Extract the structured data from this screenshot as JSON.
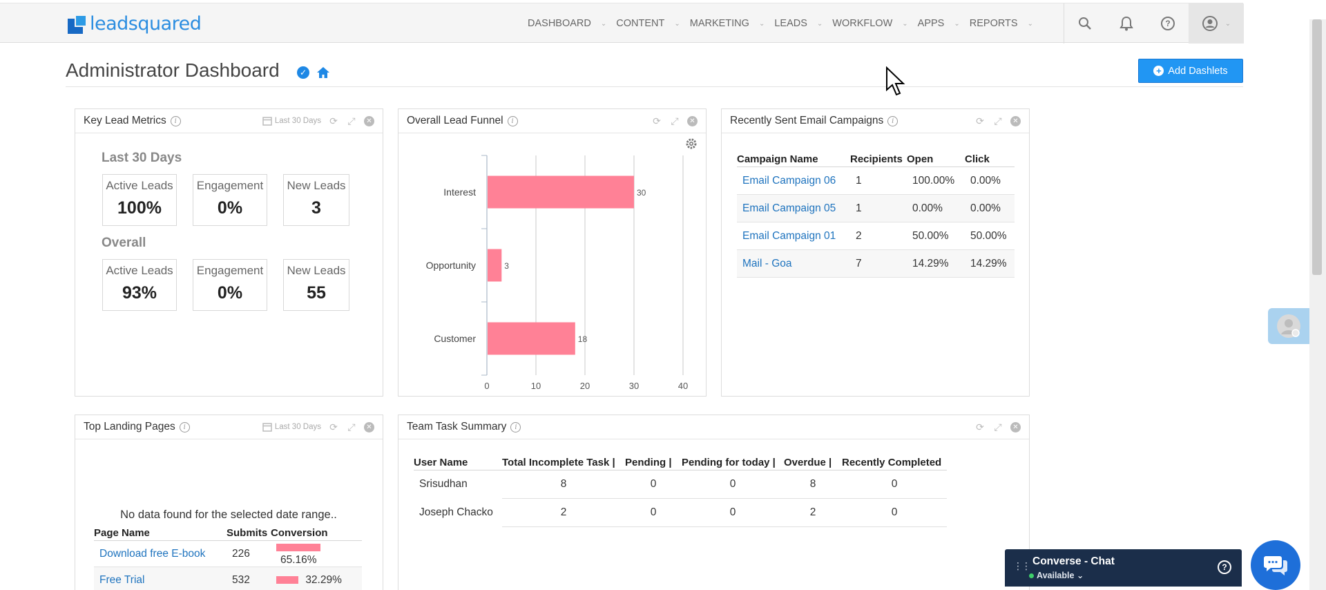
{
  "brand": {
    "logo_text": "leadsquared"
  },
  "nav": {
    "items": [
      {
        "label": "DASHBOARD"
      },
      {
        "label": "CONTENT"
      },
      {
        "label": "MARKETING"
      },
      {
        "label": "LEADS"
      },
      {
        "label": "WORKFLOW"
      },
      {
        "label": "APPS"
      },
      {
        "label": "REPORTS"
      }
    ],
    "help_glyph": "?"
  },
  "page": {
    "title": "Administrator Dashboard",
    "add_dashlets_label": "Add Dashlets"
  },
  "key_lead_metrics": {
    "title": "Key Lead Metrics",
    "range_label": "Last 30 Days",
    "sections": [
      {
        "heading": "Last 30 Days",
        "metrics": [
          {
            "label": "Active Leads",
            "value": "100%"
          },
          {
            "label": "Engagement",
            "value": "0%"
          },
          {
            "label": "New Leads",
            "value": "3"
          }
        ]
      },
      {
        "heading": "Overall",
        "metrics": [
          {
            "label": "Active Leads",
            "value": "93%"
          },
          {
            "label": "Engagement",
            "value": "0%"
          },
          {
            "label": "New Leads",
            "value": "55"
          }
        ]
      }
    ]
  },
  "lead_funnel": {
    "title": "Overall Lead Funnel"
  },
  "chart_data": {
    "type": "bar",
    "orientation": "horizontal",
    "categories": [
      "Interest",
      "Opportunity",
      "Customer"
    ],
    "values": [
      30,
      3,
      18
    ],
    "xlim": [
      0,
      40
    ],
    "xticks": [
      0,
      10,
      20,
      30,
      40
    ],
    "grid": true,
    "bar_color": "#ff8196"
  },
  "email_campaigns": {
    "title": "Recently Sent Email Campaigns",
    "columns": [
      "Campaign Name",
      "Recipients",
      "Open",
      "Click"
    ],
    "rows": [
      {
        "name": "Email Campaign 06",
        "recipients": "1",
        "open": "100.00%",
        "click": "0.00%"
      },
      {
        "name": "Email Campaign 05",
        "recipients": "1",
        "open": "0.00%",
        "click": "0.00%"
      },
      {
        "name": "Email Campaign 01",
        "recipients": "2",
        "open": "50.00%",
        "click": "50.00%"
      },
      {
        "name": "Mail - Goa",
        "recipients": "7",
        "open": "14.29%",
        "click": "14.29%"
      }
    ]
  },
  "landing_pages": {
    "title": "Top Landing Pages",
    "range_label": "Last 30 Days",
    "no_data_text": "No data found for the selected date range..",
    "columns": [
      "Page Name",
      "Submits",
      "Conversion"
    ],
    "rows": [
      {
        "name": "Download free E-book",
        "submits": "226",
        "conversion": "65.16%",
        "pct": 0.6516
      },
      {
        "name": "Free Trial",
        "submits": "532",
        "conversion": "32.29%",
        "pct": 0.3229
      }
    ]
  },
  "team_tasks": {
    "title": "Team Task Summary",
    "columns": [
      "User Name",
      "Total Incomplete Task",
      "Pending",
      "Pending for today",
      "Overdue",
      "Recently Completed"
    ],
    "rows": [
      {
        "user": "Srisudhan",
        "total": "8",
        "pending": "0",
        "today": "0",
        "overdue": "8",
        "completed": "0"
      },
      {
        "user": "Joseph Chacko",
        "total": "2",
        "pending": "0",
        "today": "0",
        "overdue": "2",
        "completed": "0"
      }
    ]
  },
  "chat": {
    "title": "Converse - Chat",
    "status": "Available",
    "help_glyph": "?"
  }
}
